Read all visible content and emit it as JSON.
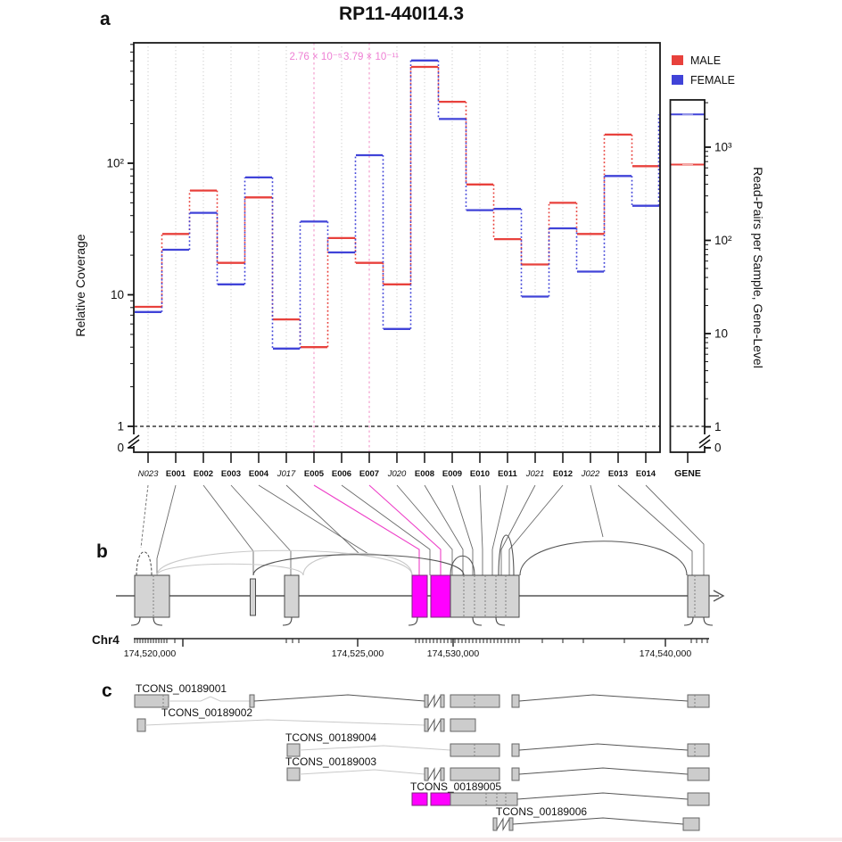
{
  "figure_title": "RP11-440I14.3",
  "panel_labels": {
    "a": "a",
    "b": "b",
    "c": "c"
  },
  "legend": {
    "male_label": "MALE",
    "female_label": "FEMALE"
  },
  "colors": {
    "male": "#e8413c",
    "female": "#4043d8",
    "highlight": "#ff00ff",
    "pvalue_text": "#ee7fd4",
    "pink_gridline": "#f4a8d2",
    "gridline": "#cdcdcd"
  },
  "chart_data": {
    "type": "line",
    "subtype": "step",
    "title": "RP11-440I14.3",
    "ylabel_left": "Relative Coverage",
    "ylabel_right": "Read-Pairs per Sample, Gene-Level",
    "yscale": "log",
    "grid": "vertical-dotted",
    "legend_position": "top-right",
    "left_axis_tick_labels": [
      "10²",
      "10",
      "1",
      "0"
    ],
    "right_axis_tick_labels": [
      "10³",
      "10²",
      "10",
      "1",
      "0"
    ],
    "categories": [
      "N023",
      "E001",
      "E002",
      "E003",
      "E004",
      "J017",
      "E005",
      "E006",
      "E007",
      "J020",
      "E008",
      "E009",
      "E010",
      "E011",
      "J021",
      "E012",
      "J022",
      "E013",
      "E014"
    ],
    "italic_categories": [
      "N023",
      "J017",
      "J020",
      "J021",
      "J022"
    ],
    "highlighted_categories": [
      "E005",
      "E007"
    ],
    "series": [
      {
        "name": "MALE",
        "color": "#e8413c",
        "values": [
          8.1,
          29,
          62,
          17.5,
          55,
          6.5,
          4.0,
          27,
          17.5,
          12,
          540,
          293,
          69,
          26.5,
          17,
          50,
          29,
          165,
          95
        ]
      },
      {
        "name": "FEMALE",
        "color": "#4043d8",
        "values": [
          7.4,
          22,
          42,
          12,
          78,
          3.9,
          36,
          21,
          115,
          5.5,
          604,
          217,
          44,
          45,
          9.7,
          32,
          15,
          80,
          47.5
        ]
      }
    ],
    "gene_level": {
      "label": "GENE",
      "MALE": 650,
      "FEMALE": 2250
    },
    "annotations": [
      {
        "text": "2.76 × 10⁻⁵",
        "category": "E005"
      },
      {
        "text": "3.79 × 10⁻¹¹",
        "category": "E007"
      }
    ],
    "baseline_value": 1
  },
  "genome_axis": {
    "chrom_label": "Chr4",
    "tick_labels": [
      "174,520,000",
      "174,525,000",
      "174,530,000",
      "174,540,000"
    ]
  },
  "transcripts": [
    {
      "id": "TCONS_00189001"
    },
    {
      "id": "TCONS_00189002"
    },
    {
      "id": "TCONS_00189004"
    },
    {
      "id": "TCONS_00189003"
    },
    {
      "id": "TCONS_00189005"
    },
    {
      "id": "TCONS_00189006"
    }
  ]
}
